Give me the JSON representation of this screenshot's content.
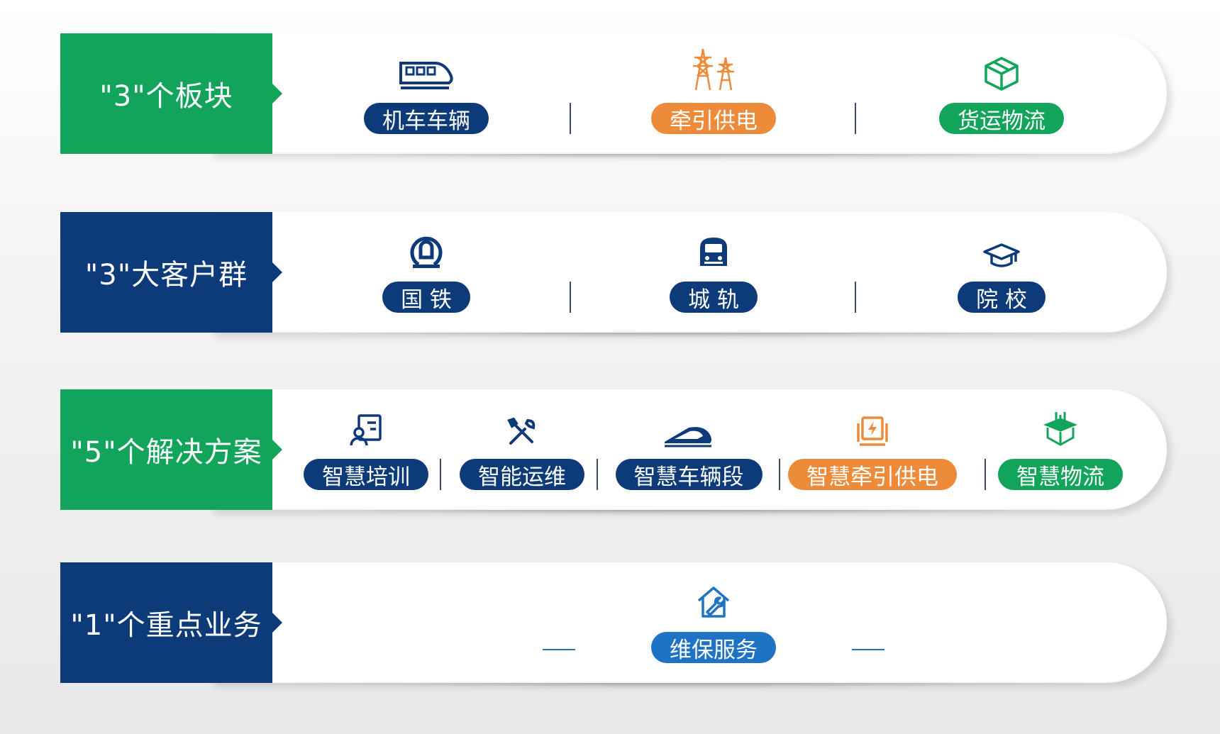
{
  "rows": [
    {
      "label": "\"3\"个板块",
      "items": [
        {
          "label": "机车车辆",
          "icon": "train-icon",
          "color": "#0d3b7a"
        },
        {
          "label": "牵引供电",
          "icon": "power-tower-icon",
          "color": "#ee8b3a"
        },
        {
          "label": "货运物流",
          "icon": "box-icon",
          "color": "#13a45c"
        }
      ]
    },
    {
      "label": "\"3\"大客户群",
      "items": [
        {
          "label": "国 铁",
          "icon": "railway-logo-icon",
          "color": "#0d3b7a"
        },
        {
          "label": "城 轨",
          "icon": "metro-icon",
          "color": "#0d3b7a"
        },
        {
          "label": "院 校",
          "icon": "graduation-cap-icon",
          "color": "#0d3b7a"
        }
      ]
    },
    {
      "label": "\"5\"个解决方案",
      "items": [
        {
          "label": "智慧培训",
          "icon": "training-icon",
          "color": "#0d3b7a"
        },
        {
          "label": "智能运维",
          "icon": "tools-icon",
          "color": "#0d3b7a"
        },
        {
          "label": "智慧车辆段",
          "icon": "high-speed-train-icon",
          "color": "#0d3b7a"
        },
        {
          "label": "智慧牵引供电",
          "icon": "power-icon",
          "color": "#ee8b3a"
        },
        {
          "label": "智慧物流",
          "icon": "logistics-icon",
          "color": "#13a45c"
        }
      ]
    },
    {
      "label": "\"1\"个重点业务",
      "items": [
        {
          "label": "维保服务",
          "icon": "maintenance-icon",
          "color": "#1f73c4"
        }
      ]
    }
  ]
}
